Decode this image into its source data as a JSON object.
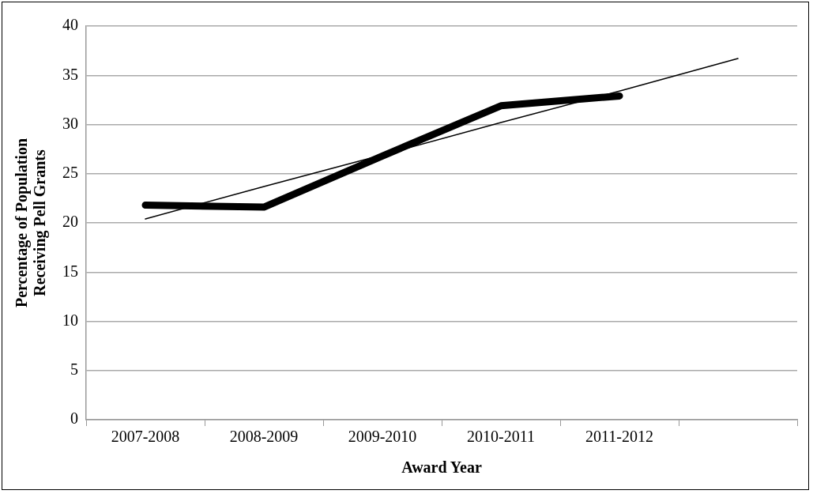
{
  "chart_data": {
    "type": "line",
    "xlabel": "Award Year",
    "ylabel": "Percentage of Population Receiving Pell Grants",
    "categories": [
      "2007-2008",
      "2008-2009",
      "2009-2010",
      "2010-2011",
      "2011-2012",
      null
    ],
    "series": [
      {
        "color": "#000000",
        "values": [
          21.8,
          21.6,
          26.8,
          31.9,
          32.9,
          null
        ]
      },
      {
        "color": "#000000",
        "values": [
          20.4,
          23.7,
          26.9,
          30.2,
          33.4,
          36.7
        ]
      }
    ],
    "ylim": [
      0,
      40
    ],
    "yticks": [
      0,
      5,
      10,
      15,
      20,
      25,
      30,
      35,
      40
    ],
    "grid": "y",
    "legend": false,
    "marker": "none",
    "line_style": "solid"
  }
}
